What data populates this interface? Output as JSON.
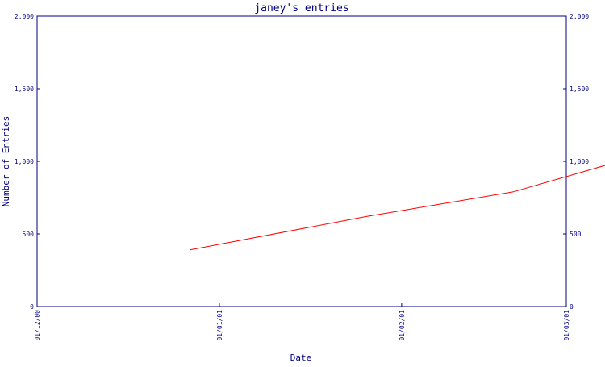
{
  "chart_data": {
    "type": "line",
    "title": "janey's entries",
    "xlabel": "Date",
    "ylabel": "Number of Entries",
    "x_ticks": [
      "01/12/00",
      "01/01/01",
      "01/02/01",
      "01/03/01"
    ],
    "y_ticks": [
      "0",
      "500",
      "1,000",
      "1,500",
      "2,000"
    ],
    "y_tick_values": [
      0,
      500,
      1000,
      1500,
      2000
    ],
    "ylim": [
      0,
      2000
    ],
    "right_axis": true,
    "grid": false,
    "colors": {
      "axis": "#000080",
      "series": "#ff0000"
    },
    "series": [
      {
        "x": [
          "2000-12-27",
          "2001-01-26",
          "2001-02-20",
          "2001-03-22"
        ],
        "values": [
          390,
          620,
          790,
          1140
        ]
      }
    ]
  }
}
